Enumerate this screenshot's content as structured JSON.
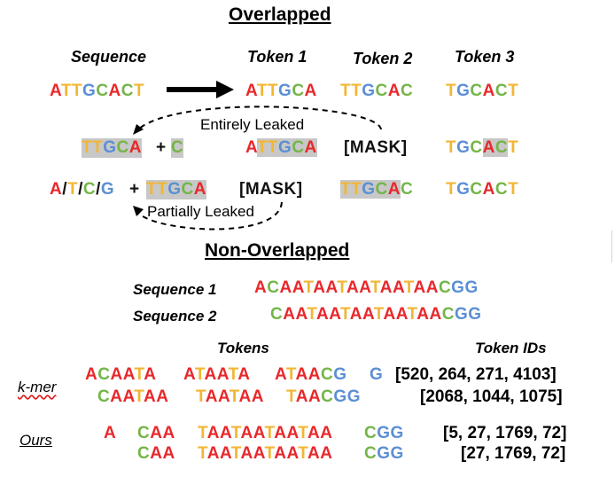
{
  "overlapped": {
    "title": "Overlapped",
    "headers": {
      "sequence": "Sequence",
      "token1": "Token 1",
      "token2": "Token 2",
      "token3": "Token 3"
    },
    "row1": {
      "sequence": "ATTGCACT",
      "token1": "ATTGCA",
      "token2": "TTGCAC",
      "token3": "TGCACT"
    },
    "entirely_leaked_label": "Entirely Leaked",
    "row2": {
      "left1": "TTGCA",
      "plus": "+",
      "left2": "C",
      "token1": "ATTGCA",
      "token2": "[MASK]",
      "token3": "TGCACT"
    },
    "row3": {
      "left_options": "A/T/C/G",
      "plus": "+",
      "left2": "TTGCA",
      "token1": "[MASK]",
      "token2": "TTGCAC",
      "token3": "TGCACT"
    },
    "partially_leaked_label": "Partially Leaked"
  },
  "non_overlapped": {
    "title": "Non-Overlapped",
    "seq1_label": "Sequence 1",
    "seq1": "ACAATAATAATAATAACGG",
    "seq2_label": "Sequence 2",
    "seq2": "CAATAATAATAATAACGG",
    "tokens_header": "Tokens",
    "token_ids_header": "Token IDs",
    "kmer": {
      "label": "k-mer",
      "row1_tokens": [
        "ACAATA",
        "ATAATA",
        "ATAACG",
        "G"
      ],
      "row1_ids": "[520, 264, 271, 4103]",
      "row2_tokens": [
        "CAATAA",
        "TAATAA",
        "TAACGG"
      ],
      "row2_ids": "[2068, 1044, 1075]"
    },
    "ours": {
      "label": "Ours",
      "row1_tokens": [
        "A",
        "CAA",
        "TAATAATAATAA",
        "CGG"
      ],
      "row1_ids": "[5, 27, 1769, 72]",
      "row2_tokens": [
        "CAA",
        "TAATAATAATAA",
        "CGG"
      ],
      "row2_ids": "[27, 1769, 72]"
    }
  },
  "colors": {
    "A": "#e8282b",
    "T": "#f2b634",
    "G": "#5b8fd4",
    "C": "#74b548"
  }
}
